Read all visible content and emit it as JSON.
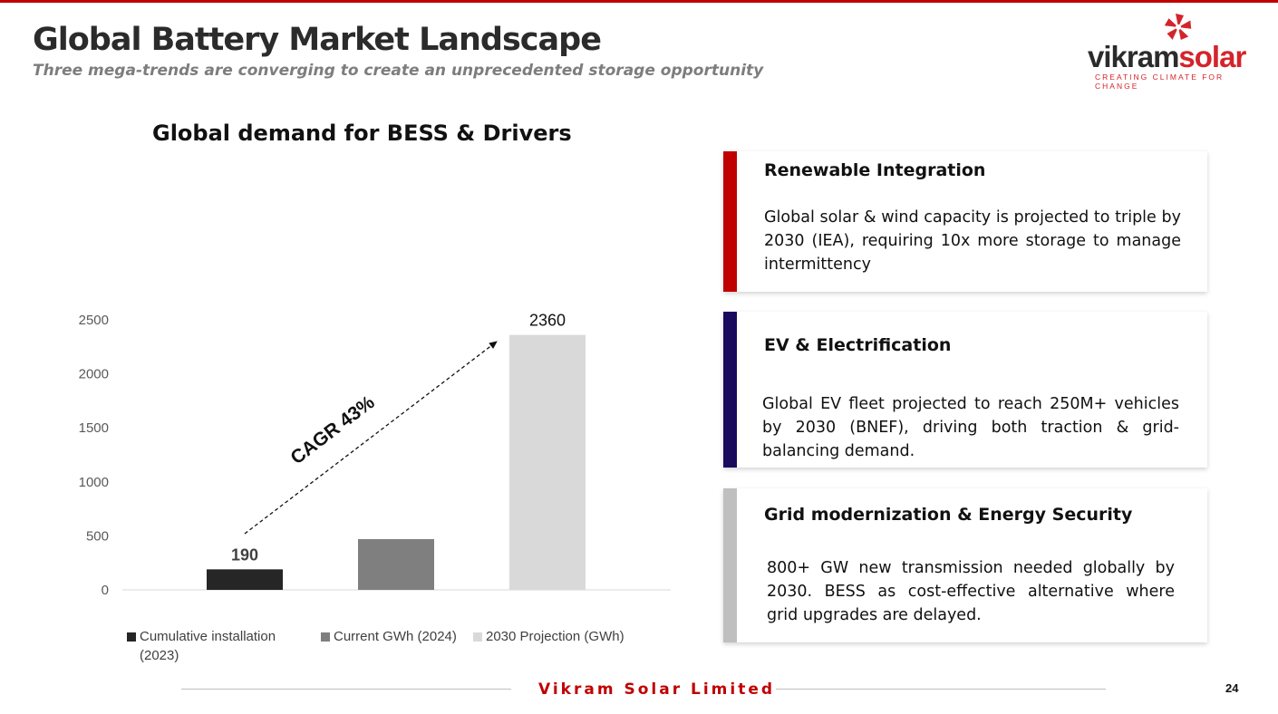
{
  "header": {
    "title": "Global Battery Market Landscape",
    "subtitle": "Three mega-trends are converging to create an unprecedented storage opportunity"
  },
  "logo": {
    "name_part1": "vikram",
    "name_part2": "solar",
    "tagline": "CREATING CLIMATE FOR CHANGE"
  },
  "chart_data": {
    "type": "bar",
    "title": "Global demand for BESS & Drivers",
    "categories": [
      "Cumulative installation (2023)",
      "Current GWh (2024)",
      "2030 Projection (GWh)"
    ],
    "legend_labels": [
      "Cumulative installation\n(2023)",
      "Current GWh (2024)",
      "2030 Projection (GWh)"
    ],
    "values": [
      190,
      470,
      2360
    ],
    "data_labels": [
      "190",
      "",
      "2360"
    ],
    "colors": [
      "#262626",
      "#7f7f7f",
      "#d9d9d9"
    ],
    "y_ticks": [
      0,
      500,
      1000,
      1500,
      2000,
      2500
    ],
    "ylim": [
      0,
      2500
    ],
    "xlabel": "",
    "ylabel": "",
    "annotation": "CAGR 43%",
    "legend_position": "bottom"
  },
  "drivers": [
    {
      "title": "Renewable Integration",
      "text": "Global solar & wind capacity is projected to triple by 2030 (IEA), requiring 10x more storage to manage intermittency",
      "accent_color": "#c00000"
    },
    {
      "title": "EV & Electrification",
      "text": "Global EV fleet projected to reach 250M+ vehicles by 2030 (BNEF), driving both traction & grid-balancing demand.",
      "accent_color": "#1a0a5e"
    },
    {
      "title": "Grid modernization & Energy Security",
      "text": "800+ GW new transmission needed globally by 2030. BESS as cost-effective alternative where grid upgrades are delayed.",
      "accent_color": "#bfbfbf"
    }
  ],
  "footer": {
    "company": "Vikram Solar Limited",
    "page_number": "24"
  }
}
